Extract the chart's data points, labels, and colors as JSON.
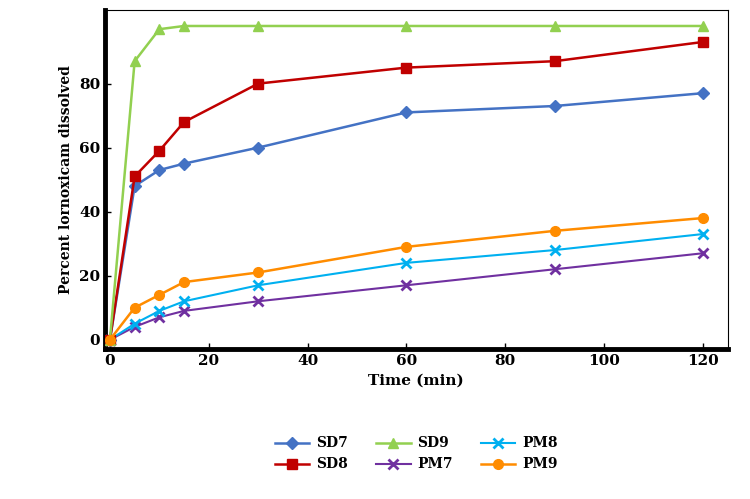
{
  "time": [
    0,
    5,
    10,
    15,
    30,
    60,
    90,
    120
  ],
  "SD7": [
    0,
    48,
    53,
    55,
    60,
    71,
    73,
    77
  ],
  "SD8": [
    0,
    51,
    59,
    68,
    80,
    85,
    87,
    93
  ],
  "SD9": [
    0,
    87,
    97,
    98,
    98,
    98,
    98,
    98
  ],
  "PM7": [
    0,
    4,
    7,
    9,
    12,
    17,
    22,
    27
  ],
  "PM8": [
    0,
    5,
    9,
    12,
    17,
    24,
    28,
    33
  ],
  "PM9": [
    0,
    10,
    14,
    18,
    21,
    29,
    34,
    38
  ],
  "SD7_color": "#4472C4",
  "SD8_color": "#C00000",
  "SD9_color": "#92D050",
  "PM7_color": "#7030A0",
  "PM8_color": "#00B0F0",
  "PM9_color": "#FF8C00",
  "xlabel": "Time (min)",
  "ylabel": "Percent lornoxicam dissolved",
  "xlim": [
    -1,
    125
  ],
  "ylim": [
    -3,
    103
  ],
  "xticks": [
    0,
    20,
    40,
    60,
    80,
    100,
    120
  ],
  "yticks": [
    0,
    20,
    40,
    60,
    80
  ],
  "figsize": [
    7.5,
    4.99
  ],
  "dpi": 100
}
